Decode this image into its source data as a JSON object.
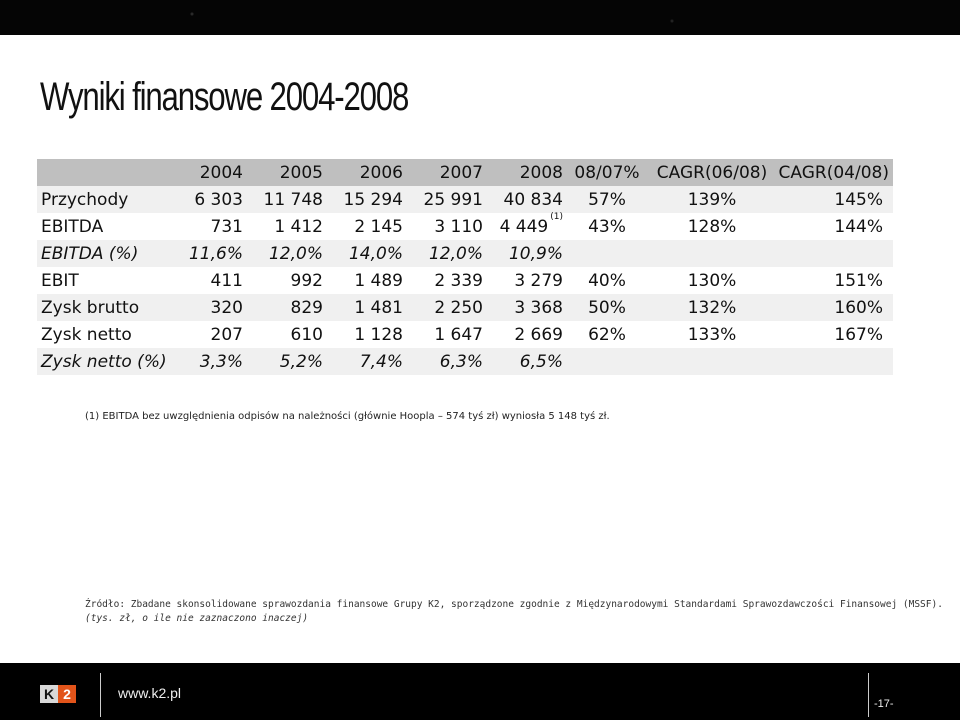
{
  "title": "Wyniki finansowe 2004-2008",
  "table": {
    "headers": [
      "",
      "2004",
      "2005",
      "2006",
      "2007",
      "2008",
      "08/07%",
      "CAGR(06/08)",
      "CAGR(04/08)"
    ],
    "rows": [
      {
        "label": "Przychody",
        "values": [
          "6 303",
          "11 748",
          "15 294",
          "25 991",
          "40 834",
          "57%",
          "139%",
          "145%"
        ],
        "note": ""
      },
      {
        "label": "EBITDA",
        "values": [
          "731",
          "1 412",
          "2 145",
          "3 110",
          "4 449",
          "43%",
          "128%",
          "144%"
        ],
        "note": "(1)"
      },
      {
        "label": "EBITDA (%)",
        "values": [
          "11,6%",
          "12,0%",
          "14,0%",
          "12,0%",
          "10,9%",
          "",
          "",
          ""
        ],
        "note": ""
      },
      {
        "label": "EBIT",
        "values": [
          "411",
          "992",
          "1 489",
          "2 339",
          "3 279",
          "40%",
          "130%",
          "151%"
        ],
        "note": ""
      },
      {
        "label": "Zysk brutto",
        "values": [
          "320",
          "829",
          "1 481",
          "2 250",
          "3 368",
          "50%",
          "132%",
          "160%"
        ],
        "note": ""
      },
      {
        "label": "Zysk netto",
        "values": [
          "207",
          "610",
          "1 128",
          "1 647",
          "2 669",
          "62%",
          "133%",
          "167%"
        ],
        "note": ""
      },
      {
        "label": "Zysk netto (%)",
        "values": [
          "3,3%",
          "5,2%",
          "7,4%",
          "6,3%",
          "6,5%",
          "",
          "",
          ""
        ],
        "note": ""
      }
    ]
  },
  "footnote": "(1) EBITDA bez uwzględnienia odpisów na należności (głównie Hoopla – 574 tyś zł) wyniosła 5 148 tyś zł.",
  "source_line1": "Źródło: Zbadane skonsolidowane sprawozdania finansowe Grupy K2, sporządzone zgodnie z Międzynarodowymi Standardami Sprawozdawczości Finansowej (MSSF).",
  "source_line2": "(tys. zł, o ile nie zaznaczono inaczej)",
  "footer": {
    "logo_k": "K",
    "logo_2": "2",
    "url": "www.k2.pl",
    "page": "-17-"
  }
}
